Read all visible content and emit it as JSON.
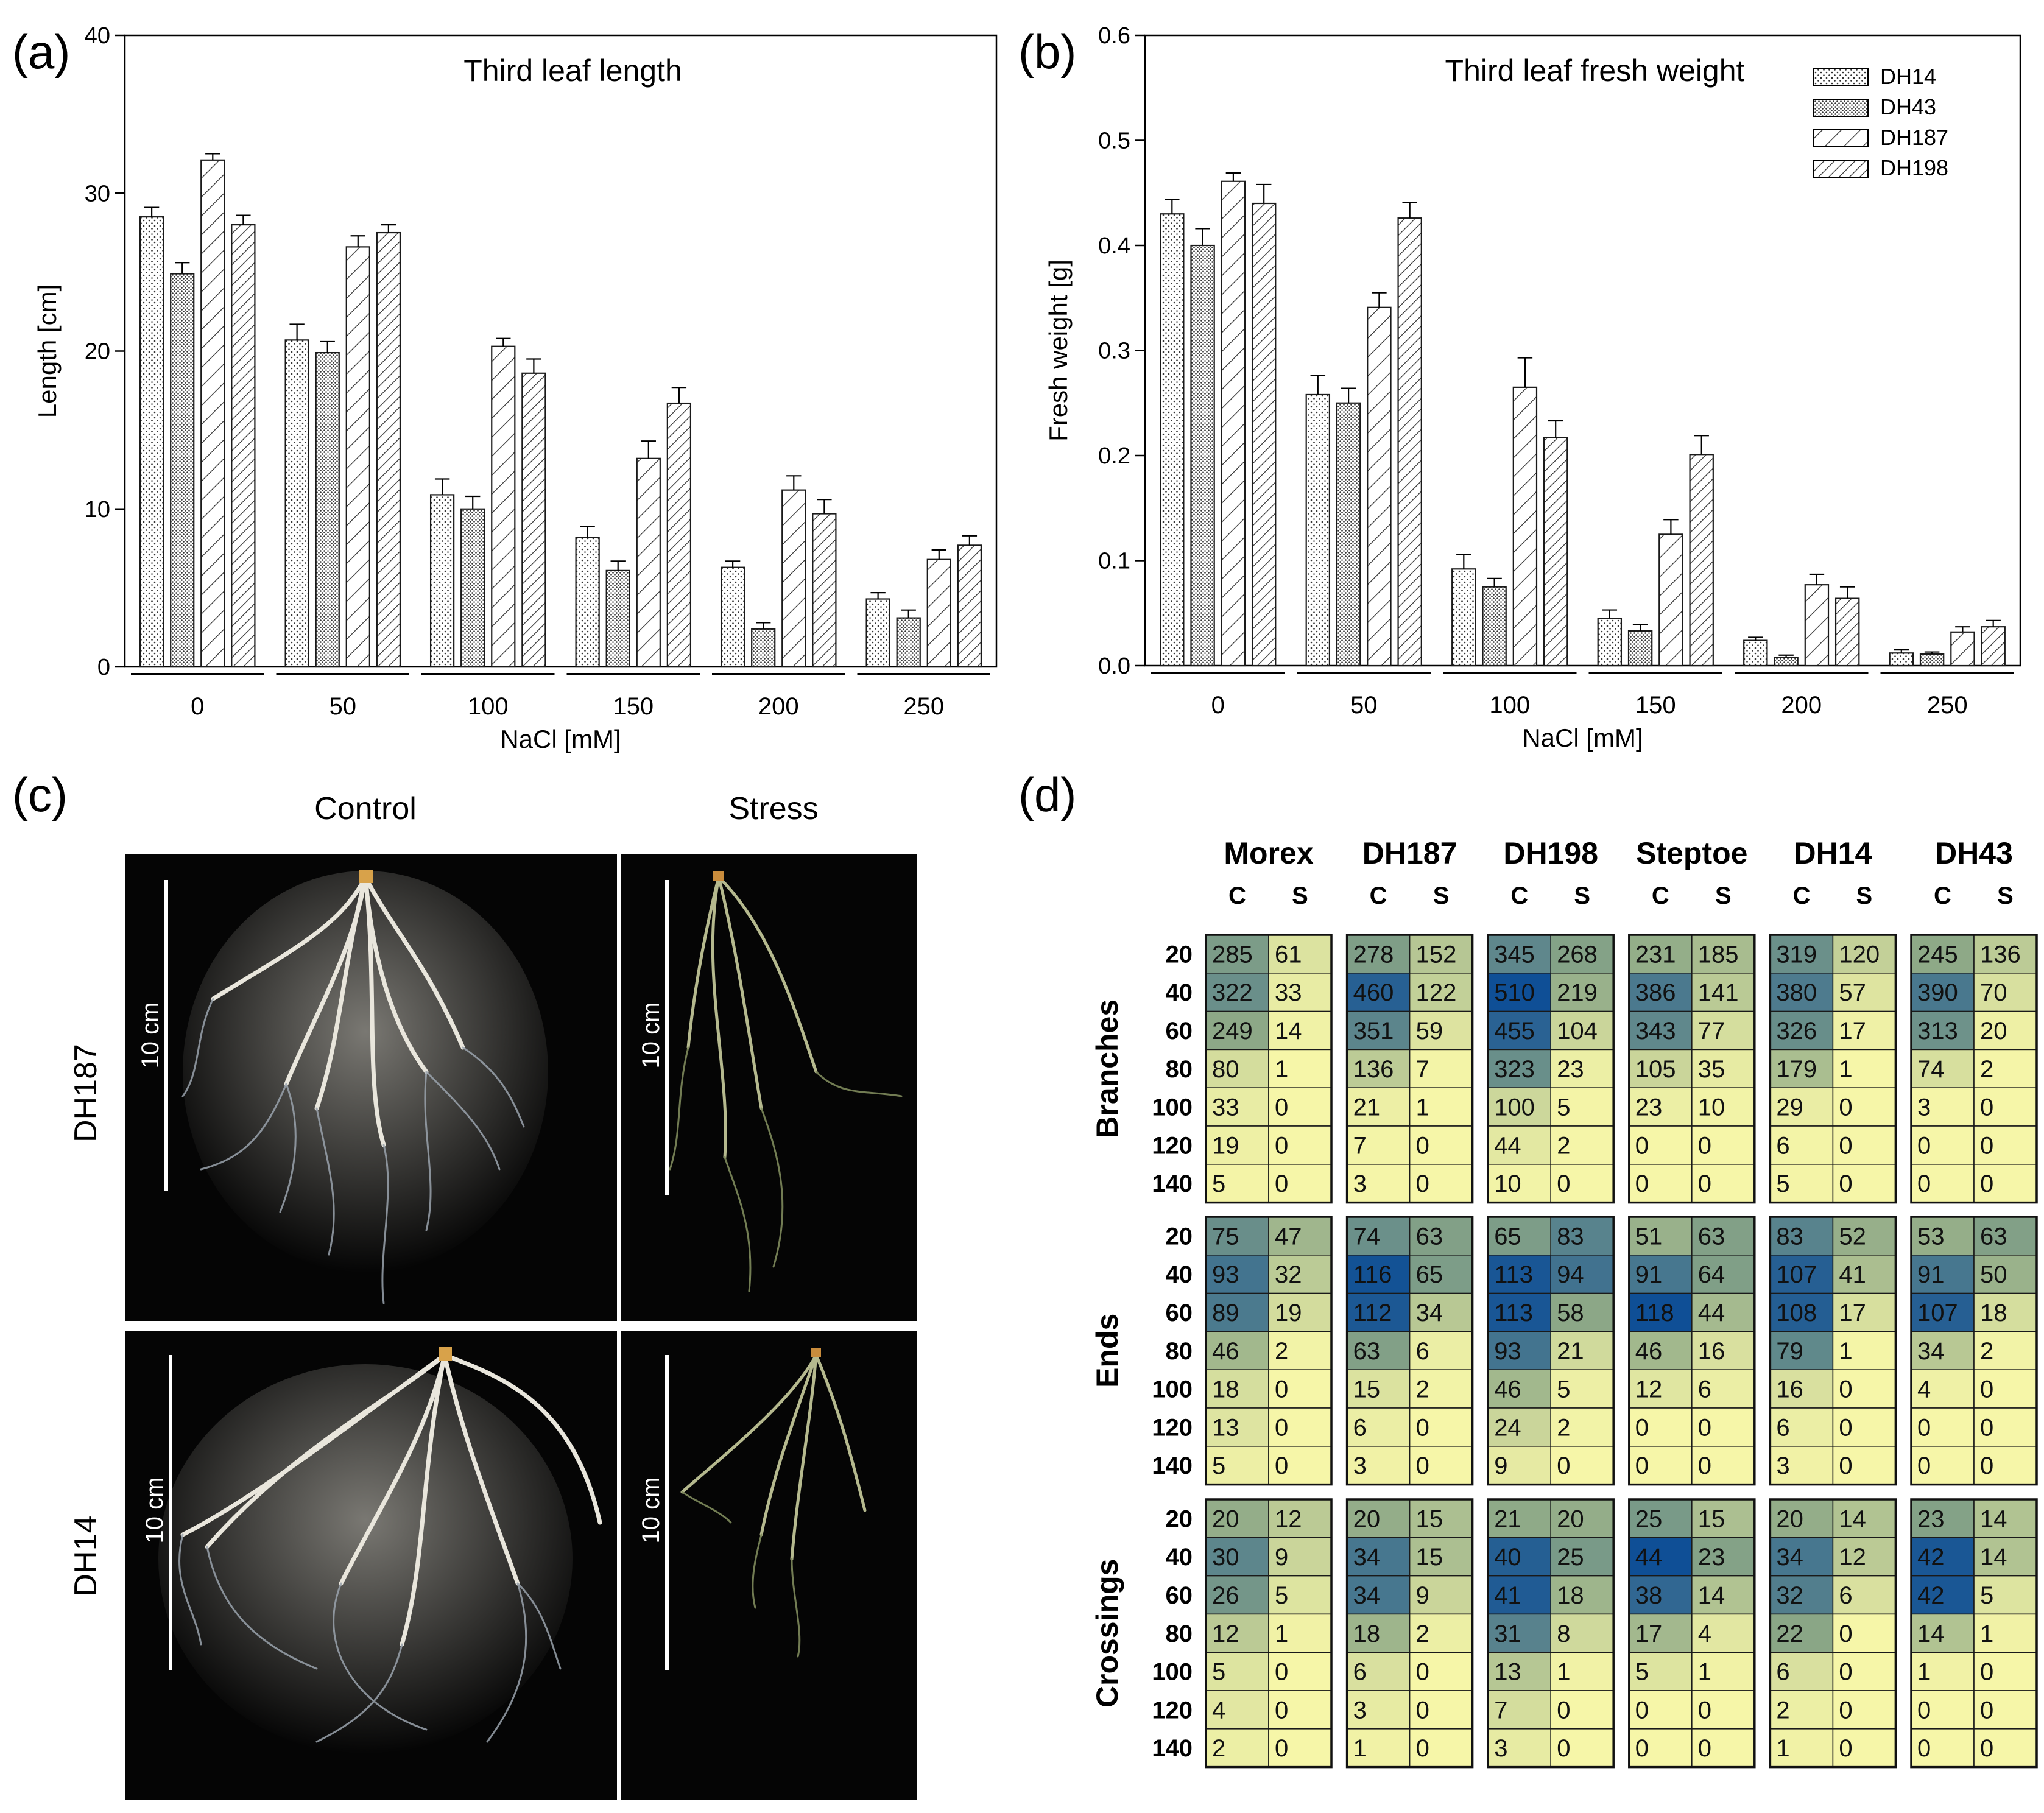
{
  "panel_labels": {
    "a": "(a)",
    "b": "(b)",
    "c": "(c)",
    "d": "(d)"
  },
  "photo_panel": {
    "col_labels": [
      "Control",
      "Stress"
    ],
    "row_labels": [
      "DH187",
      "DH14"
    ],
    "scale_label": "10 cm"
  },
  "colors": {
    "low": "#f6f6a8",
    "high": "#0f4f96",
    "bar_edge": "#1a1a1a"
  },
  "chart_data": [
    {
      "type": "bar",
      "title": "Third leaf length",
      "xlabel": "NaCl [mM]",
      "ylabel": "Length [cm]",
      "ylim": [
        0,
        40
      ],
      "yticks": [
        "0",
        "10",
        "20",
        "30",
        "40"
      ],
      "categories": [
        "0",
        "50",
        "100",
        "150",
        "200",
        "250"
      ],
      "series": [
        {
          "name": "DH14",
          "pattern": "dots-fine",
          "values": [
            28.5,
            20.7,
            10.9,
            8.2,
            6.3,
            4.3
          ],
          "errors": [
            0.6,
            1.0,
            1.0,
            0.7,
            0.4,
            0.4
          ]
        },
        {
          "name": "DH43",
          "pattern": "dots-dense",
          "values": [
            24.9,
            19.9,
            10.0,
            6.1,
            2.4,
            3.1
          ],
          "errors": [
            0.7,
            0.7,
            0.8,
            0.6,
            0.4,
            0.5
          ]
        },
        {
          "name": "DH187",
          "pattern": "hatch-wide",
          "values": [
            32.1,
            26.6,
            20.3,
            13.2,
            11.2,
            6.8
          ],
          "errors": [
            0.4,
            0.7,
            0.5,
            1.1,
            0.9,
            0.6
          ]
        },
        {
          "name": "DH198",
          "pattern": "hatch-dense",
          "values": [
            28.0,
            27.5,
            18.6,
            16.7,
            9.7,
            7.7
          ],
          "errors": [
            0.6,
            0.5,
            0.9,
            1.0,
            0.9,
            0.6
          ]
        }
      ],
      "legend": "none"
    },
    {
      "type": "bar",
      "title": "Third leaf fresh weight",
      "xlabel": "NaCl [mM]",
      "ylabel": "Fresh weight [g]",
      "ylim": [
        0,
        0.6
      ],
      "yticks": [
        "0.0",
        "0.1",
        "0.2",
        "0.3",
        "0.4",
        "0.5",
        "0.6"
      ],
      "categories": [
        "0",
        "50",
        "100",
        "150",
        "200",
        "250"
      ],
      "series": [
        {
          "name": "DH14",
          "pattern": "dots-fine",
          "values": [
            0.43,
            0.258,
            0.092,
            0.045,
            0.024,
            0.012
          ],
          "errors": [
            0.014,
            0.018,
            0.014,
            0.008,
            0.003,
            0.003
          ]
        },
        {
          "name": "DH43",
          "pattern": "dots-dense",
          "values": [
            0.4,
            0.25,
            0.075,
            0.033,
            0.008,
            0.011
          ],
          "errors": [
            0.016,
            0.014,
            0.008,
            0.006,
            0.002,
            0.002
          ]
        },
        {
          "name": "DH187",
          "pattern": "hatch-wide",
          "values": [
            0.461,
            0.341,
            0.265,
            0.125,
            0.077,
            0.032
          ],
          "errors": [
            0.008,
            0.014,
            0.028,
            0.014,
            0.01,
            0.005
          ]
        },
        {
          "name": "DH198",
          "pattern": "hatch-dense",
          "values": [
            0.44,
            0.426,
            0.217,
            0.201,
            0.064,
            0.037
          ],
          "errors": [
            0.018,
            0.015,
            0.016,
            0.018,
            0.011,
            0.006
          ]
        }
      ],
      "legend": "top-right"
    },
    {
      "type": "heatmap",
      "genotypes": [
        "Morex",
        "DH187",
        "DH198",
        "Steptoe",
        "DH14",
        "DH43"
      ],
      "subcols": [
        "C",
        "S"
      ],
      "rows": [
        "20",
        "40",
        "60",
        "80",
        "100",
        "120",
        "140"
      ],
      "traits": [
        {
          "name": "Branches",
          "max": 510,
          "values": [
            [
              [
                285,
                61
              ],
              [
                278,
                152
              ],
              [
                345,
                268
              ],
              [
                231,
                185
              ],
              [
                319,
                120
              ],
              [
                245,
                136
              ]
            ],
            [
              [
                322,
                33
              ],
              [
                460,
                122
              ],
              [
                510,
                219
              ],
              [
                386,
                141
              ],
              [
                380,
                57
              ],
              [
                390,
                70
              ]
            ],
            [
              [
                249,
                14
              ],
              [
                351,
                59
              ],
              [
                455,
                104
              ],
              [
                343,
                77
              ],
              [
                326,
                17
              ],
              [
                313,
                20
              ]
            ],
            [
              [
                80,
                1
              ],
              [
                136,
                7
              ],
              [
                323,
                23
              ],
              [
                105,
                35
              ],
              [
                179,
                1
              ],
              [
                74,
                2
              ]
            ],
            [
              [
                33,
                0
              ],
              [
                21,
                1
              ],
              [
                100,
                5
              ],
              [
                23,
                10
              ],
              [
                29,
                0
              ],
              [
                3,
                0
              ]
            ],
            [
              [
                19,
                0
              ],
              [
                7,
                0
              ],
              [
                44,
                2
              ],
              [
                0,
                0
              ],
              [
                6,
                0
              ],
              [
                0,
                0
              ]
            ],
            [
              [
                5,
                0
              ],
              [
                3,
                0
              ],
              [
                10,
                0
              ],
              [
                0,
                0
              ],
              [
                5,
                0
              ],
              [
                0,
                0
              ]
            ]
          ]
        },
        {
          "name": "Ends",
          "max": 118,
          "values": [
            [
              [
                75,
                47
              ],
              [
                74,
                63
              ],
              [
                65,
                83
              ],
              [
                51,
                63
              ],
              [
                83,
                52
              ],
              [
                53,
                63
              ]
            ],
            [
              [
                93,
                32
              ],
              [
                116,
                65
              ],
              [
                113,
                94
              ],
              [
                91,
                64
              ],
              [
                107,
                41
              ],
              [
                91,
                50
              ]
            ],
            [
              [
                89,
                19
              ],
              [
                112,
                34
              ],
              [
                113,
                58
              ],
              [
                118,
                44
              ],
              [
                108,
                17
              ],
              [
                107,
                18
              ]
            ],
            [
              [
                46,
                2
              ],
              [
                63,
                6
              ],
              [
                93,
                21
              ],
              [
                46,
                16
              ],
              [
                79,
                1
              ],
              [
                34,
                2
              ]
            ],
            [
              [
                18,
                0
              ],
              [
                15,
                2
              ],
              [
                46,
                5
              ],
              [
                12,
                6
              ],
              [
                16,
                0
              ],
              [
                4,
                0
              ]
            ],
            [
              [
                13,
                0
              ],
              [
                6,
                0
              ],
              [
                24,
                2
              ],
              [
                0,
                0
              ],
              [
                6,
                0
              ],
              [
                0,
                0
              ]
            ],
            [
              [
                5,
                0
              ],
              [
                3,
                0
              ],
              [
                9,
                0
              ],
              [
                0,
                0
              ],
              [
                3,
                0
              ],
              [
                0,
                0
              ]
            ]
          ]
        },
        {
          "name": "Crossings",
          "max": 44,
          "values": [
            [
              [
                20,
                12
              ],
              [
                20,
                15
              ],
              [
                21,
                20
              ],
              [
                25,
                15
              ],
              [
                20,
                14
              ],
              [
                23,
                14
              ]
            ],
            [
              [
                30,
                9
              ],
              [
                34,
                15
              ],
              [
                40,
                25
              ],
              [
                44,
                23
              ],
              [
                34,
                12
              ],
              [
                42,
                14
              ]
            ],
            [
              [
                26,
                5
              ],
              [
                34,
                9
              ],
              [
                41,
                18
              ],
              [
                38,
                14
              ],
              [
                32,
                6
              ],
              [
                42,
                5
              ]
            ],
            [
              [
                12,
                1
              ],
              [
                18,
                2
              ],
              [
                31,
                8
              ],
              [
                17,
                4
              ],
              [
                22,
                0
              ],
              [
                14,
                1
              ]
            ],
            [
              [
                5,
                0
              ],
              [
                6,
                0
              ],
              [
                13,
                1
              ],
              [
                5,
                1
              ],
              [
                6,
                0
              ],
              [
                1,
                0
              ]
            ],
            [
              [
                4,
                0
              ],
              [
                3,
                0
              ],
              [
                7,
                0
              ],
              [
                0,
                0
              ],
              [
                2,
                0
              ],
              [
                0,
                0
              ]
            ],
            [
              [
                2,
                0
              ],
              [
                1,
                0
              ],
              [
                3,
                0
              ],
              [
                0,
                0
              ],
              [
                1,
                0
              ],
              [
                0,
                0
              ]
            ]
          ]
        }
      ]
    }
  ]
}
